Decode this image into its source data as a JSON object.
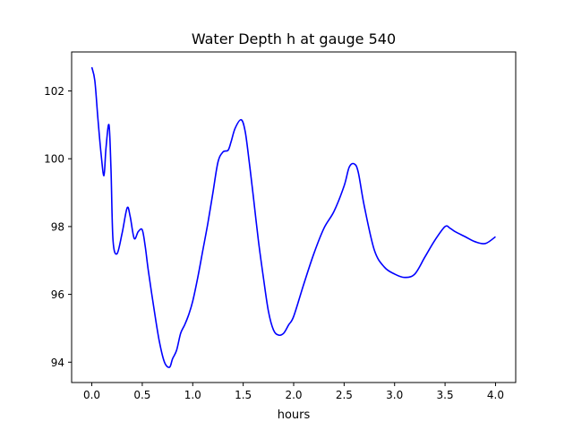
{
  "chart_data": {
    "type": "line",
    "title": "Water Depth h at gauge 540",
    "xlabel": "hours",
    "ylabel": "",
    "xlim": [
      -0.2,
      4.2
    ],
    "ylim": [
      93.4,
      103.15
    ],
    "xticks": [
      0.0,
      0.5,
      1.0,
      1.5,
      2.0,
      2.5,
      3.0,
      3.5,
      4.0
    ],
    "xtick_labels": [
      "0.0",
      "0.5",
      "1.0",
      "1.5",
      "2.0",
      "2.5",
      "3.0",
      "3.5",
      "4.0"
    ],
    "yticks": [
      94,
      96,
      98,
      100,
      102
    ],
    "ytick_labels": [
      "94",
      "96",
      "98",
      "100",
      "102"
    ],
    "grid": false,
    "line_color": "#0000ff",
    "series": [
      {
        "x": [
          0.0,
          0.03,
          0.06,
          0.09,
          0.12,
          0.14,
          0.17,
          0.19,
          0.21,
          0.25,
          0.3,
          0.35,
          0.38,
          0.42,
          0.46,
          0.5,
          0.53,
          0.56,
          0.62,
          0.67,
          0.72,
          0.77,
          0.8,
          0.84,
          0.88,
          0.92,
          0.96,
          1.0,
          1.05,
          1.1,
          1.15,
          1.2,
          1.25,
          1.3,
          1.35,
          1.38,
          1.42,
          1.48,
          1.52,
          1.56,
          1.6,
          1.65,
          1.7,
          1.75,
          1.8,
          1.85,
          1.9,
          1.95,
          2.0,
          2.1,
          2.2,
          2.3,
          2.4,
          2.5,
          2.55,
          2.6,
          2.64,
          2.7,
          2.8,
          2.9,
          3.0,
          3.1,
          3.2,
          3.3,
          3.4,
          3.5,
          3.55,
          3.6,
          3.7,
          3.8,
          3.9,
          4.0
        ],
        "y": [
          102.7,
          102.3,
          101.2,
          100.2,
          99.5,
          100.3,
          101.0,
          99.7,
          97.6,
          97.2,
          97.8,
          98.55,
          98.3,
          97.65,
          97.85,
          97.9,
          97.4,
          96.7,
          95.5,
          94.6,
          94.0,
          93.85,
          94.1,
          94.35,
          94.85,
          95.1,
          95.4,
          95.8,
          96.5,
          97.3,
          98.1,
          99.0,
          99.9,
          100.2,
          100.25,
          100.5,
          100.9,
          101.15,
          100.8,
          99.9,
          98.9,
          97.6,
          96.5,
          95.5,
          94.95,
          94.8,
          94.85,
          95.1,
          95.35,
          96.3,
          97.2,
          97.95,
          98.45,
          99.2,
          99.75,
          99.85,
          99.6,
          98.6,
          97.3,
          96.8,
          96.6,
          96.5,
          96.6,
          97.1,
          97.6,
          98.0,
          97.95,
          97.85,
          97.7,
          97.55,
          97.5,
          97.7
        ]
      }
    ]
  }
}
